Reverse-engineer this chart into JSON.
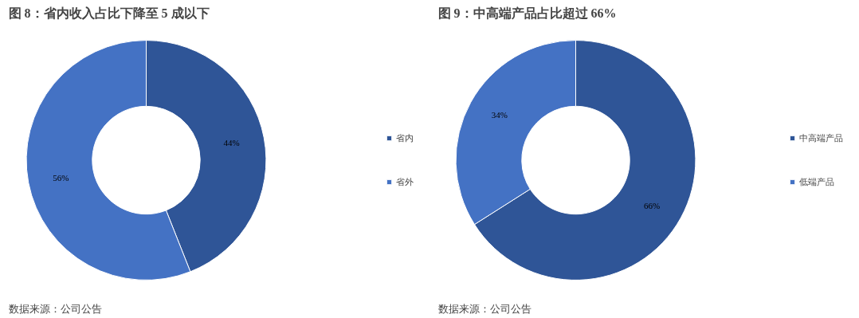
{
  "chart_data": [
    {
      "type": "donut",
      "title": "图 8：省内收入占比下降至 5 成以下",
      "categories": [
        "省内",
        "省外"
      ],
      "values": [
        44,
        56
      ],
      "colors": [
        "#2f5597",
        "#4472c4"
      ],
      "value_labels": [
        "44%",
        "56%"
      ],
      "legend": "right",
      "annotations": [
        "数据来源：公司公告"
      ]
    },
    {
      "type": "donut",
      "title": "图 9：中高端产品占比超过 66%",
      "categories": [
        "中高端产品",
        "低端产品"
      ],
      "values": [
        66,
        34
      ],
      "colors": [
        "#2f5597",
        "#4472c4"
      ],
      "value_labels": [
        "66%",
        "34%"
      ],
      "legend": "right",
      "annotations": [
        "数据来源：公司公告"
      ]
    }
  ]
}
